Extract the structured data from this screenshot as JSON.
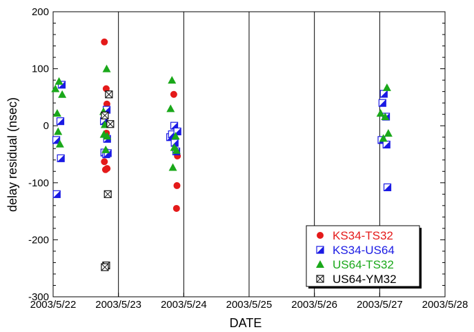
{
  "chart_data": {
    "type": "scatter",
    "xlabel": "DATE",
    "ylabel": "delay residual (nsec)",
    "xlim": [
      "2003/5/22",
      "2003/5/28"
    ],
    "ylim": [
      -300,
      200
    ],
    "xticks": [
      "2003/5/22",
      "2003/5/23",
      "2003/5/24",
      "2003/5/25",
      "2003/5/26",
      "2003/5/27",
      "2003/5/28"
    ],
    "yticks": [
      "200",
      "100",
      "0",
      "-100",
      "-200",
      "-300"
    ],
    "x_gridlines": true,
    "legend_position": "bottom-right",
    "series": [
      {
        "name": "KS34-TS32",
        "color": "#e41a1a",
        "marker": "circle",
        "points": [
          {
            "x": "2003/5/22 18:50",
            "y": 147
          },
          {
            "x": "2003/5/22 18:50",
            "y": -63
          },
          {
            "x": "2003/5/22 19:15",
            "y": -77
          },
          {
            "x": "2003/5/22 19:30",
            "y": 65
          },
          {
            "x": "2003/5/22 19:35",
            "y": -13
          },
          {
            "x": "2003/5/22 19:45",
            "y": 38
          },
          {
            "x": "2003/5/22 19:50",
            "y": -75
          },
          {
            "x": "2003/5/23 20:20",
            "y": 55
          },
          {
            "x": "2003/5/23 21:30",
            "y": -105
          },
          {
            "x": "2003/5/23 21:40",
            "y": -53
          },
          {
            "x": "2003/5/23 21:20",
            "y": -145
          }
        ]
      },
      {
        "name": "KS34-US64",
        "color": "#1a1ae4",
        "marker": "half-filled-square",
        "points": [
          {
            "x": "2003/5/22 01:10",
            "y": -25
          },
          {
            "x": "2003/5/22 01:20",
            "y": -120
          },
          {
            "x": "2003/5/22 02:40",
            "y": 8
          },
          {
            "x": "2003/5/22 02:50",
            "y": -57
          },
          {
            "x": "2003/5/22 03:10",
            "y": 72
          },
          {
            "x": "2003/5/22 18:40",
            "y": 8
          },
          {
            "x": "2003/5/22 18:50",
            "y": -47
          },
          {
            "x": "2003/5/22 19:30",
            "y": -50
          },
          {
            "x": "2003/5/22 19:40",
            "y": 28
          },
          {
            "x": "2003/5/22 19:50",
            "y": -23
          },
          {
            "x": "2003/5/22 20:05",
            "y": -48
          },
          {
            "x": "2003/5/23 19:00",
            "y": -20
          },
          {
            "x": "2003/5/23 19:40",
            "y": -15
          },
          {
            "x": "2003/5/23 20:30",
            "y": 0
          },
          {
            "x": "2003/5/23 20:40",
            "y": -30
          },
          {
            "x": "2003/5/23 21:15",
            "y": -45
          },
          {
            "x": "2003/5/23 21:40",
            "y": -10
          },
          {
            "x": "2003/5/27 00:40",
            "y": -25
          },
          {
            "x": "2003/5/27 01:00",
            "y": 40
          },
          {
            "x": "2003/5/27 01:30",
            "y": 56
          },
          {
            "x": "2003/5/27 02:20",
            "y": 16
          },
          {
            "x": "2003/5/27 02:30",
            "y": -33
          },
          {
            "x": "2003/5/27 02:50",
            "y": -108
          }
        ]
      },
      {
        "name": "US64-TS32",
        "color": "#1aa81a",
        "marker": "triangle",
        "points": [
          {
            "x": "2003/5/22 00:50",
            "y": 65
          },
          {
            "x": "2003/5/22 01:30",
            "y": 22
          },
          {
            "x": "2003/5/22 01:50",
            "y": -10
          },
          {
            "x": "2003/5/22 02:10",
            "y": 78
          },
          {
            "x": "2003/5/22 02:30",
            "y": -32
          },
          {
            "x": "2003/5/22 03:20",
            "y": 55
          },
          {
            "x": "2003/5/22 18:30",
            "y": 25
          },
          {
            "x": "2003/5/22 18:40",
            "y": -15
          },
          {
            "x": "2003/5/22 19:00",
            "y": 2
          },
          {
            "x": "2003/5/22 19:20",
            "y": -42
          },
          {
            "x": "2003/5/22 19:40",
            "y": 100
          },
          {
            "x": "2003/5/22 19:50",
            "y": -18
          },
          {
            "x": "2003/5/23 19:10",
            "y": 30
          },
          {
            "x": "2003/5/23 19:40",
            "y": 80
          },
          {
            "x": "2003/5/23 20:00",
            "y": -73
          },
          {
            "x": "2003/5/23 20:30",
            "y": -38
          },
          {
            "x": "2003/5/23 21:00",
            "y": -18
          },
          {
            "x": "2003/5/23 21:20",
            "y": -43
          },
          {
            "x": "2003/5/27 00:20",
            "y": 22
          },
          {
            "x": "2003/5/27 01:20",
            "y": -22
          },
          {
            "x": "2003/5/27 02:00",
            "y": 16
          },
          {
            "x": "2003/5/27 02:40",
            "y": 67
          },
          {
            "x": "2003/5/27 03:10",
            "y": -13
          }
        ]
      },
      {
        "name": "US64-YM32",
        "color": "#111111",
        "marker": "crossed-square",
        "points": [
          {
            "x": "2003/5/22 19:00",
            "y": 18
          },
          {
            "x": "2003/5/22 19:30",
            "y": -245
          },
          {
            "x": "2003/5/22 19:00",
            "y": -248
          },
          {
            "x": "2003/5/22 20:30",
            "y": 55
          },
          {
            "x": "2003/5/22 21:00",
            "y": 3
          },
          {
            "x": "2003/5/22 20:05",
            "y": -120
          }
        ]
      }
    ]
  }
}
